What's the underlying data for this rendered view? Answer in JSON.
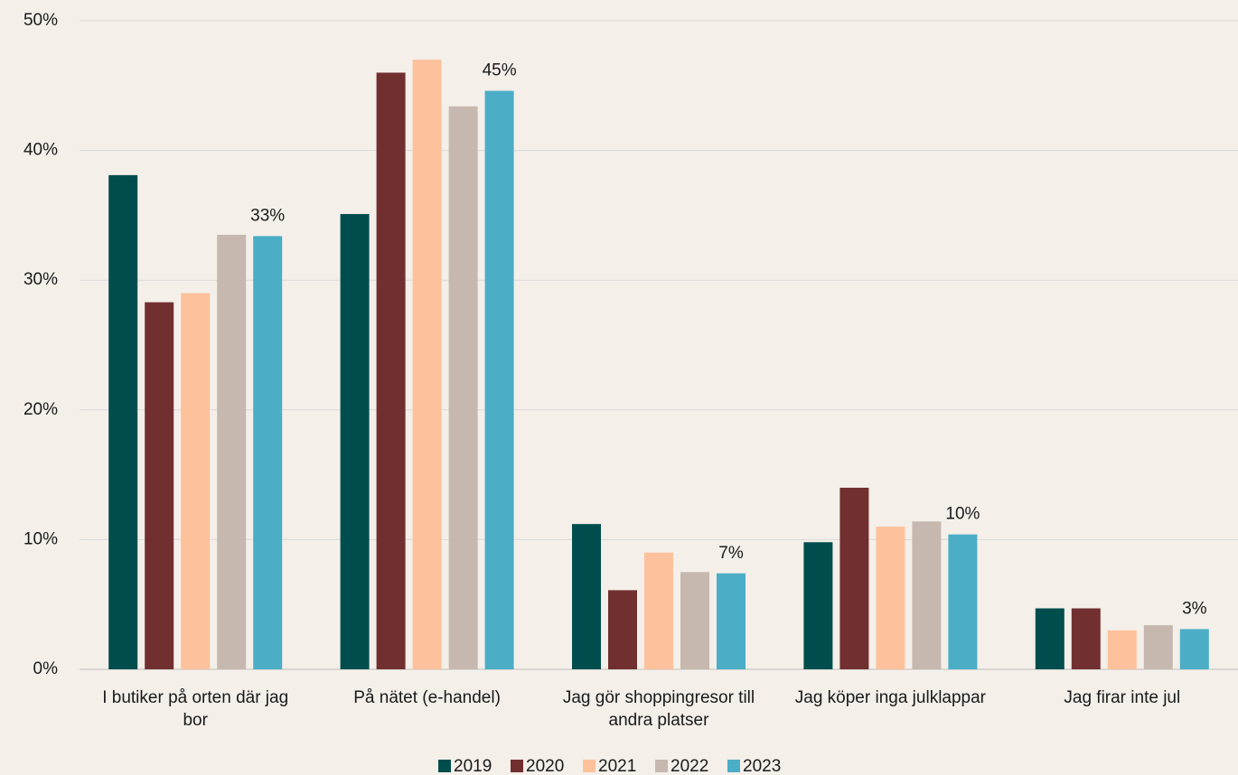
{
  "chart_data": {
    "type": "bar",
    "categories": [
      "I butiker på orten där jag bor",
      "På nätet (e-handel)",
      "Jag gör shoppingresor till andra platser",
      "Jag köper inga julklappar",
      "Jag firar inte jul"
    ],
    "series": [
      {
        "name": "2019",
        "color": "#004d4d",
        "values": [
          38.1,
          35.1,
          11.2,
          9.8,
          4.7
        ]
      },
      {
        "name": "2020",
        "color": "#722f30",
        "values": [
          28.3,
          46.0,
          6.1,
          14.0,
          4.7
        ]
      },
      {
        "name": "2021",
        "color": "#fdc19b",
        "values": [
          29.0,
          47.0,
          9.0,
          11.0,
          3.0
        ]
      },
      {
        "name": "2022",
        "color": "#c6b8ae",
        "values": [
          33.5,
          43.4,
          7.5,
          11.4,
          3.4
        ]
      },
      {
        "name": "2023",
        "color": "#4badc6",
        "values": [
          33.4,
          44.6,
          7.4,
          10.4,
          3.1
        ],
        "value_labels": [
          "33%",
          "45%",
          "7%",
          "10%",
          "3%"
        ]
      }
    ],
    "ylim": [
      0,
      50
    ],
    "yticks": [
      {
        "value": 0,
        "label": "0%"
      },
      {
        "value": 10,
        "label": "10%"
      },
      {
        "value": 20,
        "label": "20%"
      },
      {
        "value": 30,
        "label": "30%"
      },
      {
        "value": 40,
        "label": "40%"
      },
      {
        "value": 50,
        "label": "50%"
      }
    ],
    "grid": true,
    "legend": "bottom"
  }
}
